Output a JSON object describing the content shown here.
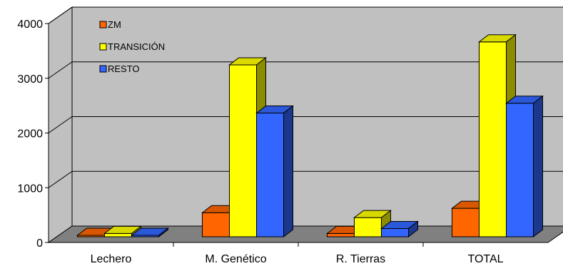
{
  "chart_data": {
    "type": "bar",
    "title": "",
    "xlabel": "",
    "ylabel": "",
    "categories": [
      "Lechero",
      "M. Genético",
      "R. Tierras",
      "TOTAL"
    ],
    "series": [
      {
        "name": "ZM",
        "values": [
          10,
          440,
          60,
          520
        ],
        "color": "#ff6600"
      },
      {
        "name": "TRANSICIÓN",
        "values": [
          60,
          3140,
          350,
          3560
        ],
        "color": "#ffff00"
      },
      {
        "name": "RESTO",
        "values": [
          15,
          2260,
          150,
          2440
        ],
        "color": "#3366ff"
      }
    ],
    "ylim": [
      0,
      4000
    ],
    "yticks": [
      0,
      1000,
      2000,
      3000,
      4000
    ],
    "grid": true,
    "legend": {
      "position": "top-left"
    },
    "style": "3d-clustered",
    "colors": {
      "wall": "#c0c0c0",
      "floor": "#808080",
      "gridline": "#000000"
    }
  }
}
